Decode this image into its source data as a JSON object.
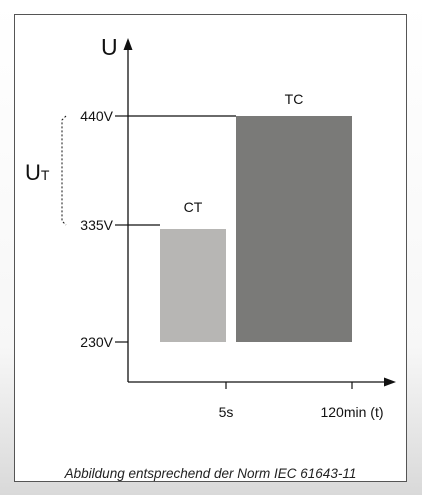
{
  "chart_data": {
    "type": "bar",
    "y_axis_label": "U",
    "ut_label_main": "U",
    "ut_label_sub": "T",
    "y_ticks": [
      "440V",
      "335V",
      "230V"
    ],
    "x_ticks": [
      "5s",
      "120min (t)"
    ],
    "bars": [
      {
        "label": "CT",
        "bottom": 230,
        "top": 335,
        "color": "#b7b6b4"
      },
      {
        "label": "TC",
        "bottom": 230,
        "top": 440,
        "color": "#7a7a78"
      }
    ]
  },
  "caption": "Abbildung entsprechend der Norm IEC 61643-11"
}
